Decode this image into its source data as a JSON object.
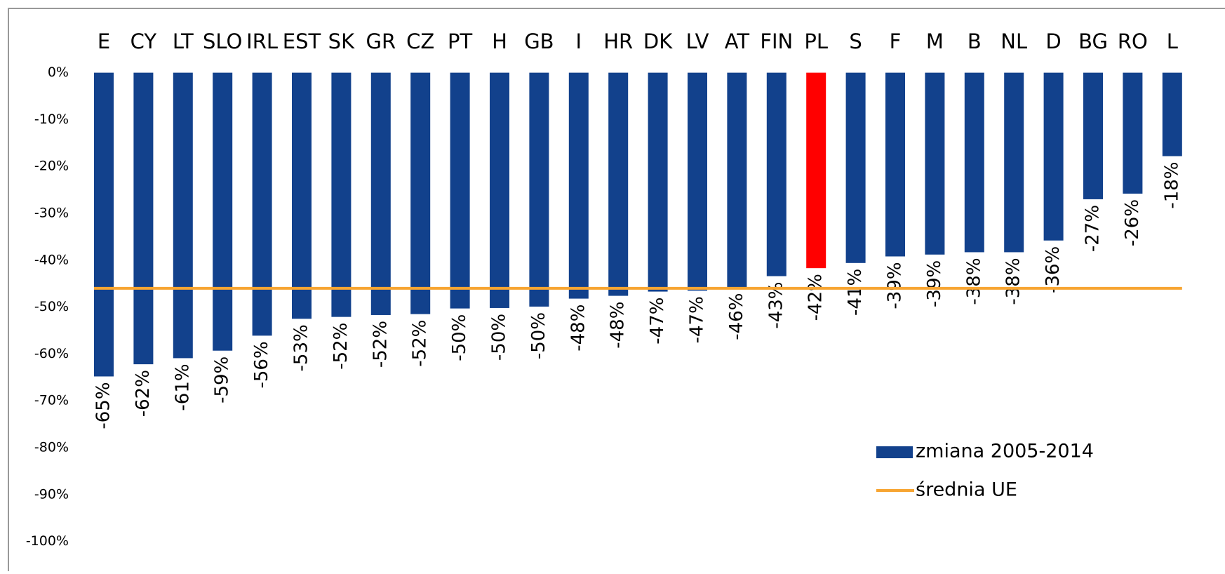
{
  "chart_data": {
    "type": "bar",
    "categories": [
      "E",
      "CY",
      "LT",
      "SLO",
      "IRL",
      "EST",
      "SK",
      "GR",
      "CZ",
      "PT",
      "H",
      "GB",
      "I",
      "HR",
      "DK",
      "LV",
      "AT",
      "FIN",
      "PL",
      "S",
      "F",
      "M",
      "B",
      "NL",
      "D",
      "BG",
      "RO",
      "L"
    ],
    "series": [
      {
        "name": "zmiana 2005-2014",
        "type": "bar",
        "color": "#12418c",
        "colors": [
          "#12418c",
          "#12418c",
          "#12418c",
          "#12418c",
          "#12418c",
          "#12418c",
          "#12418c",
          "#12418c",
          "#12418c",
          "#12418c",
          "#12418c",
          "#12418c",
          "#12418c",
          "#12418c",
          "#12418c",
          "#12418c",
          "#12418c",
          "#12418c",
          "#ff0000",
          "#12418c",
          "#12418c",
          "#12418c",
          "#12418c",
          "#12418c",
          "#12418c",
          "#12418c",
          "#12418c",
          "#12418c"
        ],
        "values": [
          -64.8,
          -62.2,
          -60.9,
          -59.3,
          -56.1,
          -52.5,
          -52.1,
          -51.7,
          -51.5,
          -50.3,
          -50.2,
          -49.9,
          -48.2,
          -47.6,
          -46.7,
          -46.5,
          -45.8,
          -43.4,
          -41.7,
          -40.6,
          -39.2,
          -38.8,
          -38.3,
          -38.3,
          -35.8,
          -27,
          -25.8,
          -17.8
        ],
        "value_labels": [
          "-65%",
          "-62%",
          "-61%",
          "-59%",
          "-56%",
          "-53%",
          "-52%",
          "-52%",
          "-52%",
          "-50%",
          "-50%",
          "-50%",
          "-48%",
          "-48%",
          "-47%",
          "-47%",
          "-46%",
          "-43%",
          "-42%",
          "-41%",
          "-39%",
          "-39%",
          "-38%",
          "-38%",
          "-36%",
          "-27%",
          "-26%",
          "-18%"
        ]
      },
      {
        "name": "średnia UE",
        "type": "line",
        "color": "#f7a532",
        "value": -46
      }
    ],
    "ylim": [
      -100,
      0
    ],
    "yticks": [
      {
        "value": 0,
        "label": "0%"
      },
      {
        "value": -10,
        "label": "-10%"
      },
      {
        "value": -20,
        "label": "-20%"
      },
      {
        "value": -30,
        "label": "-30%"
      },
      {
        "value": -40,
        "label": "-40%"
      },
      {
        "value": -50,
        "label": "-50%"
      },
      {
        "value": -60,
        "label": "-60%"
      },
      {
        "value": -70,
        "label": "-70%"
      },
      {
        "value": -80,
        "label": "-80%"
      },
      {
        "value": -90,
        "label": "-90%"
      },
      {
        "value": -100,
        "label": "-100%"
      }
    ],
    "grid": false
  }
}
